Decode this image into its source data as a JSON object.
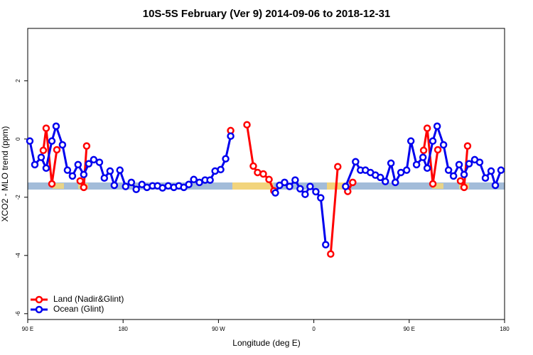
{
  "chart_data": {
    "type": "line",
    "title": "10S-5S February (Ver 9)   2014-09-06 to 2018-12-31",
    "x_label": "Longitude (deg E)",
    "y_label": "XCO2 - MLO trend (ppm)",
    "xlim": [
      90,
      540
    ],
    "xticks": [
      {
        "value": 90,
        "label": "90 E"
      },
      180,
      {
        "value": 270,
        "label": "90 W"
      },
      {
        "value": 360,
        "label": "0"
      },
      {
        "value": 450,
        "label": "90 E"
      },
      180
    ],
    "ylim": [
      -6.2,
      3.8
    ],
    "yticks": [
      2,
      0,
      -2,
      -4,
      -6
    ],
    "legend": "lower left",
    "series": [
      {
        "name": "Land (Nadir&Glint)",
        "color": "#ff0000",
        "x": [
          104.7,
          107.4,
          112.8,
          117.5,
          null,
          139.5,
          142.9,
          145.6,
          null,
          281.5,
          null,
          296.9,
          302.9,
          306.9,
          312.3,
          317.7,
          322.3,
          null,
          375.9,
          382.6,
          null,
          392.0,
          396.7,
          null,
          463.6,
          467.0,
          472.3,
          477.0,
          null,
          498.4,
          501.8,
          505.1
        ],
        "values": [
          -0.39,
          0.37,
          -1.54,
          -0.37,
          null,
          -1.44,
          -1.66,
          -0.24,
          null,
          0.29,
          null,
          0.49,
          -0.93,
          -1.15,
          -1.2,
          -1.39,
          -1.78,
          null,
          -3.95,
          -0.95,
          null,
          -1.8,
          -1.49,
          null,
          -0.39,
          0.37,
          -1.54,
          -0.37,
          null,
          -1.44,
          -1.66,
          -0.24
        ]
      },
      {
        "name": "Ocean (Glint)",
        "color": "#0000ee",
        "x": [
          92.0,
          96.7,
          102.7,
          107.4,
          112.8,
          116.8,
          122.8,
          127.5,
          132.2,
          137.5,
          142.9,
          147.6,
          152.3,
          157.7,
          162.3,
          167.7,
          171.7,
          177.0,
          182.4,
          187.8,
          192.4,
          197.8,
          202.5,
          207.8,
          212.5,
          217.2,
          222.6,
          227.9,
          232.6,
          237.3,
          242.0,
          246.7,
          252.0,
          257.4,
          262.1,
          266.8,
          272.1,
          276.8,
          281.5,
          null,
          323.7,
          327.7,
          332.4,
          337.1,
          342.4,
          347.1,
          351.8,
          356.5,
          361.9,
          366.5,
          371.2,
          null,
          390.0,
          399.4,
          404.0,
          408.7,
          413.4,
          418.1,
          422.8,
          427.5,
          432.8,
          436.9,
          442.2,
          447.6,
          451.6,
          456.9,
          463.0,
          467.0,
          472.3,
          476.4,
          482.4,
          487.1,
          491.8,
          497.1,
          501.8,
          506.5,
          511.8,
          516.5,
          521.9,
          527.3,
          531.3,
          536.6
        ],
        "values": [
          -0.07,
          -0.88,
          -0.63,
          -1.0,
          -0.07,
          0.44,
          -0.2,
          -1.07,
          -1.27,
          -0.88,
          -1.22,
          -0.85,
          -0.71,
          -0.8,
          -1.34,
          -1.1,
          -1.59,
          -1.07,
          -1.63,
          -1.49,
          -1.73,
          -1.56,
          -1.66,
          -1.61,
          -1.61,
          -1.68,
          -1.61,
          -1.66,
          -1.61,
          -1.66,
          -1.56,
          -1.39,
          -1.49,
          -1.41,
          -1.41,
          -1.1,
          -1.05,
          -0.68,
          0.1,
          null,
          -1.85,
          -1.59,
          -1.49,
          -1.63,
          -1.41,
          -1.71,
          -1.9,
          -1.63,
          -1.81,
          -2.02,
          -3.63,
          null,
          -1.63,
          -0.78,
          -1.07,
          -1.07,
          -1.15,
          -1.24,
          -1.32,
          -1.46,
          -0.83,
          -1.49,
          -1.15,
          -1.07,
          -0.07,
          -0.88,
          -0.63,
          -1.0,
          -0.07,
          0.44,
          -0.2,
          -1.07,
          -1.27,
          -0.88,
          -1.22,
          -0.85,
          -0.71,
          -0.8,
          -1.34,
          -1.1,
          -1.59,
          -1.07
        ]
      }
    ]
  }
}
